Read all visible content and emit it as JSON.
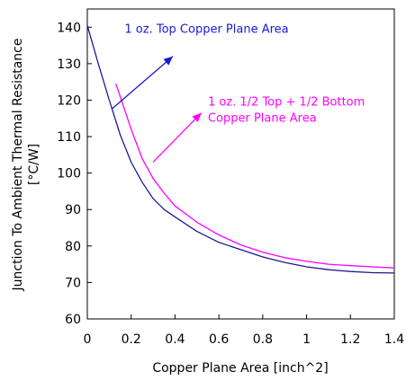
{
  "chart_data": {
    "type": "line",
    "title": "",
    "xlabel": "Copper Plane Area [inch^2]",
    "ylabel_line1": "Junction To Ambient Thermal Resistance",
    "ylabel_line2": "[°C/W]",
    "xlim": [
      0,
      1.4
    ],
    "ylim": [
      60,
      145
    ],
    "x_ticks": [
      "0",
      "0.2",
      "0.4",
      "0.6",
      "0.8",
      "1",
      "1.2",
      "1.4"
    ],
    "y_ticks": [
      "60",
      "70",
      "80",
      "90",
      "100",
      "110",
      "120",
      "130",
      "140"
    ],
    "grid": false,
    "series": [
      {
        "name": "1 oz. Top Copper Plane Area",
        "color": "#1b1b8f",
        "x": [
          0.0,
          0.05,
          0.1,
          0.15,
          0.2,
          0.25,
          0.3,
          0.35,
          0.4,
          0.5,
          0.6,
          0.7,
          0.8,
          0.9,
          1.0,
          1.1,
          1.2,
          1.3,
          1.4
        ],
        "y": [
          140.5,
          130,
          120,
          110.5,
          103,
          97.5,
          93,
          90,
          88,
          84,
          81,
          79,
          77,
          75.5,
          74.3,
          73.5,
          73,
          72.7,
          72.6
        ]
      },
      {
        "name": "1 oz. 1/2 Top + 1/2 Bottom Copper Plane Area",
        "color": "#ff00ff",
        "x": [
          0.13,
          0.15,
          0.2,
          0.25,
          0.3,
          0.35,
          0.4,
          0.5,
          0.6,
          0.7,
          0.8,
          0.9,
          1.0,
          1.1,
          1.2,
          1.3,
          1.4
        ],
        "y": [
          124.5,
          121,
          112,
          104,
          98.5,
          94.5,
          91,
          86.5,
          83,
          80.3,
          78.3,
          76.8,
          75.8,
          75,
          74.6,
          74.3,
          74
        ]
      }
    ],
    "annotations": [
      {
        "lines": [
          "1 oz. Top Copper Plane Area"
        ],
        "color": "#1b1bd0",
        "text_at": [
          0.17,
          138.5
        ],
        "arrow_from": [
          0.11,
          117.5
        ],
        "arrow_to": [
          0.39,
          132
        ]
      },
      {
        "lines": [
          "1 oz. 1/2 Top  + 1/2 Bottom",
          "Copper Plane Area"
        ],
        "color": "#ff00ff",
        "text_at": [
          0.55,
          118.5
        ],
        "arrow_from": [
          0.3,
          103
        ],
        "arrow_to": [
          0.52,
          116.5
        ]
      }
    ]
  }
}
